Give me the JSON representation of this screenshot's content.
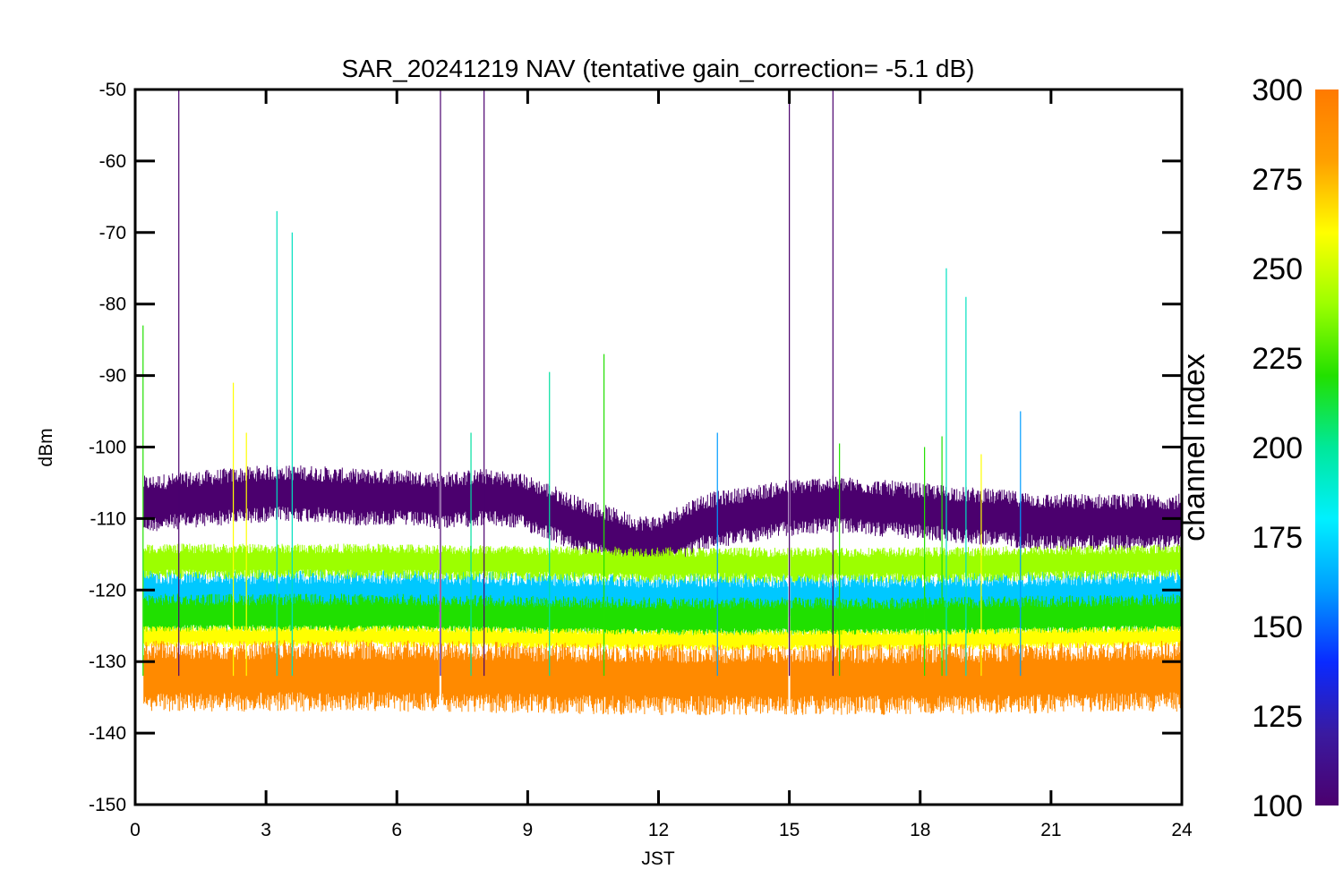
{
  "chart_data": {
    "type": "line",
    "title": "SAR_20241219 NAV (tentative gain_correction= -5.1 dB)",
    "xlabel": "JST",
    "ylabel": "dBm",
    "xlim": [
      0,
      24
    ],
    "ylim": [
      -150,
      -50
    ],
    "xticks": [
      0,
      3,
      6,
      9,
      12,
      15,
      18,
      21,
      24
    ],
    "yticks": [
      -50,
      -60,
      -70,
      -80,
      -90,
      -100,
      -110,
      -120,
      -130,
      -140,
      -150
    ],
    "colorbar": {
      "label": "channel index",
      "range": [
        100,
        300
      ],
      "ticks": [
        100,
        125,
        150,
        175,
        200,
        225,
        250,
        275,
        300
      ],
      "colormap": [
        "#4b006e",
        "#3a1aa0",
        "#0a2aff",
        "#009cff",
        "#00f0ff",
        "#00e89a",
        "#22e000",
        "#9cff00",
        "#ffff00",
        "#ffa000",
        "#ff7a00"
      ]
    },
    "data_gaps_x": [
      7.0,
      15.0
    ],
    "series": [
      {
        "channel_range": [
          100,
          125
        ],
        "color": "#4b006e",
        "x": [
          0.2,
          1,
          2,
          3,
          4,
          5,
          6,
          7,
          8,
          8.8,
          9.5,
          10,
          10.5,
          11,
          11.5,
          12,
          12.5,
          13,
          13.5,
          14,
          15,
          16,
          17,
          18,
          19,
          20,
          21,
          22,
          23,
          24
        ],
        "mean": [
          -108,
          -107.5,
          -107,
          -106.5,
          -106.5,
          -107,
          -107,
          -107.5,
          -107,
          -107.5,
          -109,
          -110.5,
          -111.5,
          -112.5,
          -113.5,
          -113.5,
          -112,
          -110.5,
          -110,
          -109.5,
          -108.5,
          -108,
          -108.5,
          -109,
          -109.5,
          -110,
          -110.5,
          -110.5,
          -110.5,
          -110.5
        ],
        "spread": 4
      },
      {
        "channel_range": [
          150,
          175
        ],
        "color": "#00c8ff",
        "x": [
          0.2,
          6,
          12,
          18,
          24
        ],
        "mean": [
          -121,
          -121,
          -121.5,
          -121.5,
          -121
        ],
        "spread": 4
      },
      {
        "channel_range": [
          200,
          250
        ],
        "color": "#20e000",
        "x": [
          0.2,
          6,
          12,
          18,
          24
        ],
        "mean": [
          -123.5,
          -123.5,
          -124,
          -124,
          -123.5
        ],
        "spread": 3
      },
      {
        "channel_range": [
          250,
          265
        ],
        "color": "#9cff00",
        "x": [
          0.2,
          6,
          12,
          18,
          24
        ],
        "mean": [
          -116,
          -116,
          -116.5,
          -116.5,
          -116
        ],
        "spread": 2.5
      },
      {
        "channel_range": [
          265,
          280
        ],
        "color": "#ffff00",
        "x": [
          0.2,
          6,
          12,
          18,
          24
        ],
        "mean": [
          -126.5,
          -126.5,
          -127,
          -127,
          -126.5
        ],
        "spread": 1.5
      },
      {
        "channel_range": [
          280,
          300
        ],
        "color": "#ff8a00",
        "x": [
          0.2,
          6,
          12,
          18,
          24
        ],
        "mean": [
          -132,
          -132,
          -132.5,
          -132.5,
          -132
        ],
        "spread": 5
      }
    ],
    "spikes": [
      {
        "x": 0.18,
        "y": -83,
        "color": "#22e000"
      },
      {
        "x": 1.0,
        "y": -50,
        "color": "#4b006e"
      },
      {
        "x": 2.25,
        "y": -91,
        "color": "#ffff00"
      },
      {
        "x": 2.55,
        "y": -98,
        "color": "#ffff00"
      },
      {
        "x": 3.25,
        "y": -67,
        "color": "#00e0c0"
      },
      {
        "x": 3.6,
        "y": -70,
        "color": "#00e0c0"
      },
      {
        "x": 7.0,
        "y": -50,
        "color": "#4b006e"
      },
      {
        "x": 7.7,
        "y": -98,
        "color": "#00e0a0"
      },
      {
        "x": 8.0,
        "y": -50,
        "color": "#4b006e"
      },
      {
        "x": 9.5,
        "y": -89.5,
        "color": "#00e0a0"
      },
      {
        "x": 10.75,
        "y": -87,
        "color": "#22e000"
      },
      {
        "x": 13.35,
        "y": -98,
        "color": "#009cff"
      },
      {
        "x": 15.0,
        "y": -50,
        "color": "#4b006e"
      },
      {
        "x": 16.0,
        "y": -50,
        "color": "#4b006e"
      },
      {
        "x": 16.15,
        "y": -99.5,
        "color": "#22e000"
      },
      {
        "x": 18.1,
        "y": -100,
        "color": "#22e000"
      },
      {
        "x": 18.5,
        "y": -98.5,
        "color": "#22e000"
      },
      {
        "x": 18.6,
        "y": -75,
        "color": "#00e0c0"
      },
      {
        "x": 19.05,
        "y": -79,
        "color": "#00e0c0"
      },
      {
        "x": 19.4,
        "y": -101,
        "color": "#ffff00"
      },
      {
        "x": 20.3,
        "y": -95,
        "color": "#009cff"
      }
    ]
  }
}
